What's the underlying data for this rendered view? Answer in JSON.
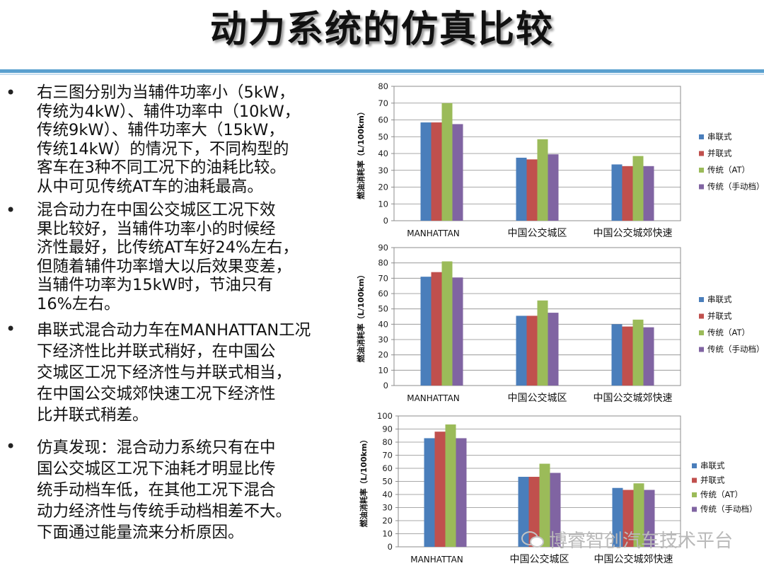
{
  "title": "动力系统的仿真比较",
  "bullets": [
    {
      "text": "右三图分别为当辅件功率小（5kW，\n传统为4kW）、辅件功率中（10kW，\n传统9kW）、辅件功率大（15kW，\n传统14kW）的情况下，不同构型的\n客车在3种不同工况下的油耗比较。\n从中可见传统AT车的油耗最高。"
    },
    {
      "text": "混合动力在中国公交城区工况下效\n果比较好，当辅件功率小的时候经\n济性最好，比传统AT车好24%左右，\n但随着辅件功率增大以后效果变差，\n当辅件功率为15kW时，节油只有\n16%左右。"
    },
    {
      "text": "串联式混合动力车在MANHATTAN工况\n下经济性比并联式稍好，在中国公\n交城区工况下经济性与并联式相当，\n在中国公交城郊快速工况下经济性\n比并联式稍差。"
    },
    {
      "text": "仿真发现：混合动力系统只有在中\n国公交城区工况下油耗才明显比传\n统手动档车低，在其他工况下混合\n动力经济性与传统手动档相差不大。\n下面通过能量流来分析原因。"
    }
  ],
  "watermark": "博睿智创汽车技术平台",
  "colors": {
    "series": [
      "#4a7ebb",
      "#c0504d",
      "#9bbb59",
      "#8064a2"
    ]
  },
  "chart_data": [
    {
      "type": "bar",
      "categories": [
        "MANHATTAN",
        "中国公交城区",
        "中国公交城郊快速"
      ],
      "ylabel": "燃油消耗率（L/100km）",
      "ylim": [
        0,
        80
      ],
      "yticks": [
        0,
        10,
        20,
        30,
        40,
        50,
        60,
        70,
        80
      ],
      "grid": true,
      "legend": "right",
      "series": [
        {
          "name": "串联式",
          "values": [
            58.5,
            37.5,
            33.5
          ]
        },
        {
          "name": "并联式",
          "values": [
            58.5,
            36.5,
            32.5
          ]
        },
        {
          "name": "传统（AT）",
          "values": [
            70,
            48.5,
            38.5
          ]
        },
        {
          "name": "传统（手动档）",
          "values": [
            57.5,
            39.5,
            32.5
          ]
        }
      ]
    },
    {
      "type": "bar",
      "categories": [
        "MANHATTAN",
        "中国公交城区",
        "中国公交城郊快速"
      ],
      "ylabel": "燃油消耗率（L/100km）",
      "ylim": [
        0,
        90
      ],
      "yticks": [
        0,
        10,
        20,
        30,
        40,
        50,
        60,
        70,
        80,
        90
      ],
      "grid": true,
      "legend": "right",
      "series": [
        {
          "name": "串联式",
          "values": [
            71,
            45.5,
            40
          ]
        },
        {
          "name": "并联式",
          "values": [
            74,
            45.5,
            38.5
          ]
        },
        {
          "name": "传统（AT）",
          "values": [
            81,
            55.5,
            43
          ]
        },
        {
          "name": "传统（手动档）",
          "values": [
            70.5,
            47.5,
            38
          ]
        }
      ]
    },
    {
      "type": "bar",
      "categories": [
        "MANHATTAN",
        "中国公交城区",
        "中国公交城郊快速"
      ],
      "ylabel": "燃油消耗率（L/100km）",
      "ylim": [
        0,
        100
      ],
      "yticks": [
        0,
        10,
        20,
        30,
        40,
        50,
        60,
        70,
        80,
        90,
        100
      ],
      "grid": true,
      "legend": "right",
      "series": [
        {
          "name": "串联式",
          "values": [
            83,
            53.5,
            45
          ]
        },
        {
          "name": "并联式",
          "values": [
            88,
            53.5,
            43.5
          ]
        },
        {
          "name": "传统（AT）",
          "values": [
            93.5,
            63.5,
            48.5
          ]
        },
        {
          "name": "传统（手动档）",
          "values": [
            83,
            56.5,
            43.5
          ]
        }
      ]
    }
  ]
}
